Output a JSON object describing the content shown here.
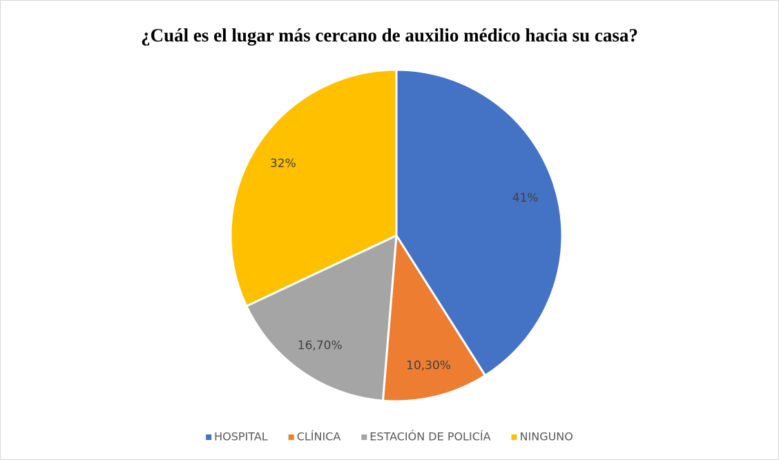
{
  "chart_data": {
    "type": "pie",
    "title": "¿Cuál es el lugar más cercano de auxilio médico hacia su casa?",
    "categories": [
      "HOSPITAL",
      "CLÍNICA",
      "ESTACIÓN DE POLICÍA",
      "NINGUNO"
    ],
    "values": [
      41,
      10.3,
      16.7,
      32
    ],
    "value_labels": [
      "41%",
      "10,30%",
      "16,70%",
      "32%"
    ],
    "colors": [
      "#4472c4",
      "#ed7d31",
      "#a5a5a5",
      "#ffc000"
    ],
    "legend": "bottom"
  }
}
